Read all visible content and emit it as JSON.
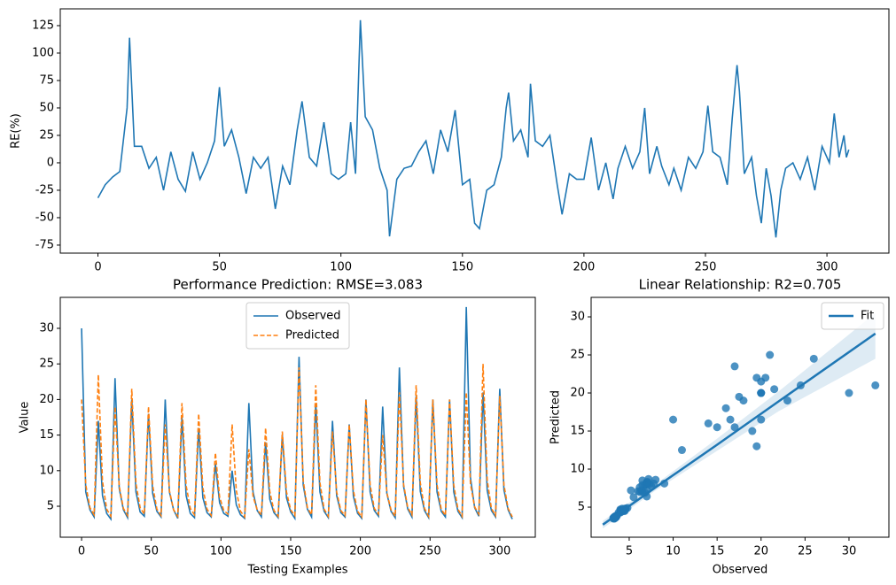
{
  "chart_data": [
    {
      "type": "line",
      "ylabel": "RE(%)",
      "xlim": [
        -15.5,
        325.5
      ],
      "ylim": [
        -82.3,
        140.3
      ],
      "xticks": [
        0,
        50,
        100,
        150,
        200,
        250,
        300
      ],
      "yticks": [
        -75,
        -50,
        -25,
        0,
        25,
        50,
        75,
        100,
        125
      ],
      "x": [
        0,
        3,
        6,
        9,
        12,
        13,
        15,
        18,
        21,
        24,
        27,
        30,
        33,
        36,
        39,
        42,
        45,
        48,
        50,
        52,
        55,
        58,
        61,
        64,
        67,
        70,
        73,
        76,
        79,
        82,
        84,
        87,
        90,
        93,
        96,
        99,
        102,
        104,
        106,
        108,
        110,
        113,
        116,
        119,
        120,
        123,
        126,
        129,
        132,
        135,
        138,
        141,
        144,
        147,
        150,
        153,
        155,
        157,
        160,
        163,
        166,
        168,
        169,
        171,
        174,
        177,
        178,
        180,
        183,
        186,
        189,
        191,
        194,
        197,
        200,
        203,
        206,
        209,
        212,
        214,
        217,
        220,
        223,
        225,
        227,
        230,
        232,
        235,
        237,
        240,
        243,
        246,
        249,
        251,
        253,
        256,
        259,
        261,
        263,
        264,
        266,
        269,
        271,
        273,
        275,
        277,
        279,
        281,
        283,
        286,
        289,
        292,
        295,
        298,
        301,
        303,
        305,
        307,
        308,
        309
      ],
      "series": [
        {
          "color": "#1f77b4",
          "values": [
            -32,
            -20,
            -13,
            -8,
            50,
            114,
            15,
            15,
            -5,
            5,
            -25,
            10,
            -15,
            -26,
            10,
            -15,
            0,
            20,
            69,
            15,
            30,
            5,
            -28,
            5,
            -5,
            5,
            -42,
            -3,
            -20,
            30,
            56,
            5,
            -3,
            37,
            -10,
            -15,
            -10,
            37,
            -10,
            130,
            42,
            30,
            -5,
            -25,
            -67,
            -15,
            -5,
            -3,
            10,
            20,
            -10,
            30,
            10,
            48,
            -20,
            -15,
            -55,
            -60,
            -25,
            -20,
            5,
            50,
            64,
            20,
            30,
            5,
            72,
            20,
            15,
            25,
            -20,
            -47,
            -10,
            -15,
            -15,
            23,
            -25,
            0,
            -33,
            -5,
            15,
            -5,
            10,
            50,
            -10,
            15,
            -3,
            -20,
            -5,
            -25,
            5,
            -5,
            10,
            52,
            10,
            5,
            -20,
            40,
            89,
            65,
            -10,
            5,
            -30,
            -55,
            -5,
            -30,
            -68,
            -25,
            -5,
            0,
            -15,
            5,
            -25,
            15,
            0,
            45,
            5,
            25,
            5,
            12
          ]
        }
      ]
    },
    {
      "type": "line",
      "title": "Performance Prediction: RMSE=3.083",
      "xlabel": "Testing Examples",
      "ylabel": "Value",
      "xlim": [
        -15.3,
        325.5
      ],
      "ylim": [
        0.65,
        34.35
      ],
      "xticks": [
        0,
        50,
        100,
        150,
        200,
        250,
        300
      ],
      "yticks": [
        5,
        10,
        15,
        20,
        25,
        30
      ],
      "legend": "upper center",
      "x": [
        0,
        3,
        6,
        9,
        12,
        15,
        18,
        21,
        24,
        27,
        30,
        33,
        36,
        39,
        42,
        45,
        48,
        51,
        54,
        57,
        60,
        63,
        66,
        69,
        72,
        75,
        78,
        81,
        84,
        87,
        90,
        93,
        96,
        99,
        102,
        105,
        108,
        111,
        114,
        117,
        120,
        123,
        126,
        129,
        132,
        135,
        138,
        141,
        144,
        147,
        150,
        153,
        156,
        159,
        162,
        165,
        168,
        171,
        174,
        177,
        180,
        183,
        186,
        189,
        192,
        195,
        198,
        201,
        204,
        207,
        210,
        213,
        216,
        219,
        222,
        225,
        228,
        231,
        234,
        237,
        240,
        243,
        246,
        249,
        252,
        255,
        258,
        261,
        264,
        267,
        270,
        273,
        276,
        279,
        282,
        285,
        288,
        291,
        294,
        297,
        300,
        303,
        306,
        309
      ],
      "series": [
        {
          "name": "Observed",
          "color": "#1f77b4",
          "dash": false,
          "values": [
            30,
            7,
            4.5,
            3.5,
            17,
            6.5,
            4,
            3.2,
            23,
            7.5,
            4.5,
            3.4,
            20,
            7,
            4.2,
            3.6,
            18,
            6.8,
            4.3,
            3.5,
            20,
            7,
            4.5,
            3.3,
            17.5,
            6.5,
            4,
            3.4,
            16,
            6.2,
            4.1,
            3.5,
            11,
            5.5,
            4,
            3.6,
            10,
            5.2,
            3.8,
            3.3,
            19.5,
            7,
            4.4,
            3.5,
            14,
            6,
            4.1,
            3.4,
            15,
            6.2,
            4.2,
            3.3,
            26,
            8,
            4.6,
            3.5,
            19.5,
            7,
            4.3,
            3.4,
            17,
            6.5,
            4.1,
            3.5,
            16.5,
            6.4,
            4,
            3.3,
            20,
            7,
            4.4,
            3.6,
            19,
            6.8,
            4.3,
            3.4,
            24.5,
            7.8,
            4.6,
            3.5,
            20.5,
            7.1,
            4.4,
            3.4,
            20,
            7,
            4.3,
            3.5,
            20,
            7,
            4.3,
            3.4,
            33,
            9,
            4.8,
            3.6,
            21,
            7.2,
            4.4,
            3.5,
            21.5,
            7.3,
            4.5,
            3.2
          ]
        },
        {
          "name": "Predicted",
          "color": "#ff7f0e",
          "dash": true,
          "values": [
            20,
            8,
            4.8,
            3.8,
            23.5,
            8.5,
            4.6,
            3.6,
            19,
            7.8,
            4.7,
            3.7,
            21.5,
            8.2,
            4.8,
            3.9,
            19,
            7.9,
            4.6,
            3.7,
            16.5,
            7.2,
            4.5,
            3.6,
            19.5,
            7.9,
            4.7,
            3.8,
            18,
            7.6,
            4.6,
            3.7,
            12.5,
            6.3,
            4.4,
            3.9,
            16.5,
            7.2,
            4.3,
            3.5,
            13,
            6.4,
            4.5,
            3.8,
            16,
            7.1,
            4.4,
            3.6,
            15.5,
            7,
            4.5,
            3.7,
            24.5,
            8.6,
            4.8,
            3.8,
            22,
            8.3,
            4.6,
            3.6,
            15.5,
            7,
            4.4,
            3.7,
            16.5,
            7.2,
            4.3,
            3.5,
            20,
            8,
            4.7,
            3.9,
            15,
            6.9,
            4.5,
            3.6,
            21,
            8.1,
            4.8,
            3.8,
            22,
            8.3,
            4.7,
            3.6,
            20,
            8,
            4.6,
            3.7,
            20,
            8,
            4.6,
            3.6,
            21,
            8.1,
            4.9,
            3.9,
            25,
            8.7,
            4.7,
            3.7,
            20.5,
            8,
            4.7,
            3.5
          ]
        }
      ]
    },
    {
      "type": "scatter",
      "title": "Linear Relationship: R2=0.705",
      "xlabel": "Observed",
      "ylabel": "Predicted",
      "xlim": [
        0.67,
        34.54
      ],
      "ylim": [
        1.05,
        32.56
      ],
      "xticks": [
        5,
        10,
        15,
        20,
        25,
        30
      ],
      "yticks": [
        5,
        10,
        15,
        20,
        25,
        30
      ],
      "legend": "upper right",
      "color": "#1f77b4",
      "x": [
        30,
        7,
        4.5,
        3.5,
        17,
        6.5,
        4,
        3.2,
        23,
        7.5,
        4.5,
        3.4,
        20,
        7,
        4.2,
        3.6,
        18,
        6.8,
        4.3,
        3.5,
        20,
        7,
        4.5,
        3.3,
        17.5,
        6.5,
        4,
        3.4,
        16,
        6.2,
        4.1,
        3.5,
        11,
        5.5,
        4,
        3.6,
        10,
        5.2,
        3.8,
        3.3,
        19.5,
        7,
        4.4,
        3.5,
        14,
        6,
        4.1,
        3.4,
        15,
        6.2,
        4.2,
        3.3,
        26,
        8,
        4.6,
        3.5,
        19.5,
        7,
        4.3,
        3.4,
        17,
        6.5,
        4.1,
        3.5,
        16.5,
        6.4,
        4,
        3.3,
        20,
        7,
        4.4,
        3.6,
        19,
        6.8,
        4.3,
        3.4,
        24.5,
        7.8,
        4.6,
        3.5,
        20.5,
        7.1,
        4.4,
        3.4,
        20,
        7,
        4.3,
        3.5,
        20,
        7,
        4.3,
        3.4,
        33,
        9,
        4.8,
        3.6,
        21,
        7.2,
        4.4,
        3.5,
        21.5,
        7.3,
        4.5,
        3.2
      ],
      "values": [
        20,
        8,
        4.8,
        3.8,
        23.5,
        8.5,
        4.6,
        3.6,
        19,
        7.8,
        4.7,
        3.7,
        21.5,
        8.2,
        4.8,
        3.9,
        19,
        7.9,
        4.6,
        3.7,
        16.5,
        7.2,
        4.5,
        3.6,
        19.5,
        7.9,
        4.7,
        3.8,
        18,
        7.6,
        4.6,
        3.7,
        12.5,
        6.3,
        4.4,
        3.9,
        16.5,
        7.2,
        4.3,
        3.5,
        13,
        6.4,
        4.5,
        3.8,
        16,
        7.1,
        4.4,
        3.6,
        15.5,
        7,
        4.5,
        3.7,
        24.5,
        8.6,
        4.8,
        3.8,
        22,
        8.3,
        4.6,
        3.6,
        15.5,
        7,
        4.4,
        3.7,
        16.5,
        7.2,
        4.3,
        3.5,
        20,
        8,
        4.7,
        3.9,
        15,
        6.9,
        4.5,
        3.6,
        21,
        8.1,
        4.8,
        3.8,
        22,
        8.3,
        4.7,
        3.6,
        20,
        8,
        4.6,
        3.7,
        20,
        8,
        4.6,
        3.6,
        21,
        8.1,
        4.9,
        3.9,
        25,
        8.7,
        4.7,
        3.7,
        20.5,
        8,
        4.7,
        3.5
      ],
      "fit": {
        "name": "Fit",
        "color": "#1f77b4",
        "x": [
          2,
          8,
          15,
          22,
          33
        ],
        "values": [
          2.7,
          7.6,
          13.2,
          18.9,
          27.8
        ],
        "lower": [
          2.2,
          7.2,
          12.4,
          17.6,
          24.5
        ],
        "upper": [
          3.2,
          8.0,
          14.0,
          20.2,
          30.5
        ]
      }
    }
  ]
}
